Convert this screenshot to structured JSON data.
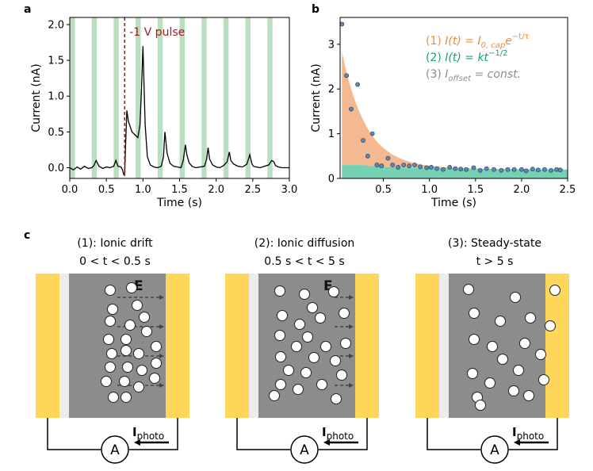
{
  "panel_labels": {
    "a": "a",
    "b": "b",
    "c": "c"
  },
  "chart_data": [
    {
      "panel": "a",
      "type": "line",
      "xlabel": "Time (s)",
      "ylabel": "Current (nA)",
      "xlim": [
        0.0,
        3.0
      ],
      "ylim": [
        -0.15,
        2.1
      ],
      "xticks": [
        0.0,
        0.5,
        1.0,
        1.5,
        2.0,
        2.5,
        3.0
      ],
      "xtick_labels": [
        "0.0",
        "0.5",
        "1.0",
        "1.5",
        "2.0",
        "2.5",
        "3.0"
      ],
      "yticks": [
        0.0,
        0.5,
        1.0,
        1.5,
        2.0
      ],
      "ytick_labels": [
        "0.0",
        "0.5",
        "1.0",
        "1.5",
        "2.0"
      ],
      "light_pulses_start_s": [
        0.0,
        0.3,
        0.6,
        0.9,
        1.2,
        1.5,
        1.8,
        2.1,
        2.4,
        2.7
      ],
      "light_pulse_width_s": 0.07,
      "light_pulse_color": "#b9dfc0",
      "line_color": "#000000",
      "marker_x": 0.75,
      "marker_color": "#a51c1c",
      "annotation": "-1 V pulse",
      "series": [
        {
          "x": [
            0.0,
            0.05,
            0.1,
            0.15,
            0.2,
            0.25,
            0.3,
            0.33,
            0.36,
            0.4,
            0.45,
            0.5,
            0.55,
            0.6,
            0.63,
            0.66,
            0.7,
            0.72,
            0.74,
            0.745,
            0.75,
            0.76,
            0.78,
            0.8,
            0.85,
            0.9,
            0.93,
            0.96,
            0.98,
            1.0,
            1.03,
            1.06,
            1.1,
            1.15,
            1.2,
            1.25,
            1.28,
            1.3,
            1.33,
            1.37,
            1.42,
            1.47,
            1.52,
            1.55,
            1.58,
            1.6,
            1.63,
            1.67,
            1.72,
            1.78,
            1.84,
            1.87,
            1.89,
            1.91,
            1.95,
            2.0,
            2.05,
            2.1,
            2.15,
            2.18,
            2.2,
            2.24,
            2.3,
            2.36,
            2.42,
            2.46,
            2.49,
            2.51,
            2.55,
            2.6,
            2.66,
            2.72,
            2.76,
            2.79,
            2.81,
            2.85,
            2.9,
            2.95,
            3.0
          ],
          "y": [
            0.0,
            -0.03,
            0.01,
            -0.02,
            0.02,
            -0.01,
            0.0,
            0.03,
            0.1,
            0.02,
            -0.01,
            0.01,
            0.0,
            0.02,
            0.1,
            0.02,
            0.01,
            -0.03,
            -0.1,
            -0.1,
            -0.1,
            0.25,
            0.8,
            0.65,
            0.5,
            0.45,
            0.42,
            0.6,
            1.1,
            1.7,
            0.6,
            0.15,
            0.04,
            0.01,
            0.0,
            0.02,
            0.15,
            0.5,
            0.2,
            0.06,
            0.02,
            0.01,
            0.0,
            0.1,
            0.32,
            0.18,
            0.07,
            0.02,
            0.0,
            0.01,
            0.02,
            0.12,
            0.28,
            0.12,
            0.04,
            0.01,
            0.0,
            0.03,
            0.08,
            0.22,
            0.1,
            0.05,
            0.02,
            0.01,
            0.05,
            0.18,
            0.05,
            0.02,
            0.01,
            0.0,
            0.02,
            0.04,
            0.1,
            0.08,
            0.03,
            0.01,
            0.0,
            0.0,
            0.0
          ]
        }
      ]
    },
    {
      "panel": "b",
      "type": "scatter",
      "xlabel": "Time (s)",
      "ylabel": "Current (nA)",
      "xlim": [
        0.03,
        2.5
      ],
      "ylim": [
        0.0,
        3.6
      ],
      "xticks": [
        0.5,
        1.0,
        1.5,
        2.0,
        2.5
      ],
      "xtick_labels": [
        "0.5",
        "1.0",
        "1.5",
        "2.0",
        "2.5"
      ],
      "yticks": [
        0,
        1,
        2,
        3
      ],
      "ytick_labels": [
        "0",
        "1",
        "2",
        "3"
      ],
      "fit_cap": {
        "I0": 3.1,
        "tau": 0.25,
        "color": "#f4b183"
      },
      "fit_diff": {
        "k": 0.13,
        "color": "#5cc9a7"
      },
      "offset": 0.15,
      "points": {
        "color": "#5b88b5",
        "edge_color": "#1f3b5a",
        "x": [
          0.05,
          0.1,
          0.15,
          0.22,
          0.28,
          0.33,
          0.38,
          0.43,
          0.48,
          0.55,
          0.6,
          0.66,
          0.72,
          0.78,
          0.84,
          0.9,
          0.97,
          1.02,
          1.08,
          1.15,
          1.22,
          1.28,
          1.34,
          1.4,
          1.48,
          1.55,
          1.62,
          1.7,
          1.78,
          1.85,
          1.92,
          2.0,
          2.05,
          2.12,
          2.18,
          2.25,
          2.32,
          2.38,
          2.42
        ],
        "y": [
          3.45,
          2.3,
          1.55,
          2.1,
          0.85,
          0.5,
          1.0,
          0.3,
          0.28,
          0.45,
          0.3,
          0.25,
          0.3,
          0.28,
          0.3,
          0.26,
          0.24,
          0.25,
          0.22,
          0.2,
          0.25,
          0.22,
          0.21,
          0.2,
          0.24,
          0.18,
          0.22,
          0.2,
          0.18,
          0.2,
          0.2,
          0.2,
          0.17,
          0.21,
          0.19,
          0.2,
          0.18,
          0.2,
          0.19
        ]
      },
      "legend": [
        {
          "num": "(1)",
          "text": "I(t) = I",
          "sub": "0, cap",
          "tail": "e",
          "sup": "−t/τ",
          "color": "#f08c3c"
        },
        {
          "num": "(2)",
          "text": "I(t) = kt",
          "sup": "−1/2",
          "color": "#14a37f"
        },
        {
          "num": "(3)",
          "text": "I",
          "sub": "offset",
          "tail": " = const.",
          "color": "#8c8c8c"
        }
      ]
    }
  ],
  "diagrams": [
    {
      "title": "(1): Ionic drift",
      "condition": "0 < t < 0.5 s",
      "field_label": "E",
      "photo_label": "photo",
      "current_label": "I",
      "ammeter_label": "A",
      "particles": [
        [
          52,
          13
        ],
        [
          79,
          10
        ],
        [
          55,
          37
        ],
        [
          86,
          32
        ],
        [
          52,
          52
        ],
        [
          77,
          57
        ],
        [
          95,
          47
        ],
        [
          98,
          65
        ],
        [
          50,
          75
        ],
        [
          72,
          75
        ],
        [
          54,
          93
        ],
        [
          72,
          89
        ],
        [
          88,
          93
        ],
        [
          110,
          84
        ],
        [
          52,
          110
        ],
        [
          74,
          110
        ],
        [
          92,
          114
        ],
        [
          110,
          105
        ],
        [
          47,
          128
        ],
        [
          70,
          128
        ],
        [
          88,
          135
        ],
        [
          108,
          124
        ],
        [
          56,
          148
        ],
        [
          72,
          148
        ]
      ],
      "arrows": 4
    },
    {
      "title": "(2): Ionic diffusion",
      "condition": "0.5 s < t < 5 s",
      "field_label": "E",
      "photo_label": "photo",
      "current_label": "I",
      "ammeter_label": "A",
      "particles": [
        [
          27,
          14
        ],
        [
          58,
          18
        ],
        [
          95,
          15
        ],
        [
          68,
          35
        ],
        [
          30,
          45
        ],
        [
          52,
          56
        ],
        [
          78,
          48
        ],
        [
          108,
          42
        ],
        [
          27,
          70
        ],
        [
          62,
          72
        ],
        [
          48,
          84
        ],
        [
          85,
          84
        ],
        [
          110,
          80
        ],
        [
          28,
          97
        ],
        [
          70,
          98
        ],
        [
          97,
          102
        ],
        [
          38,
          114
        ],
        [
          60,
          117
        ],
        [
          105,
          120
        ],
        [
          28,
          132
        ],
        [
          50,
          138
        ],
        [
          80,
          132
        ],
        [
          98,
          150
        ],
        [
          20,
          146
        ]
      ],
      "arrows": 4
    },
    {
      "title": "(3): Steady-state",
      "condition": "t > 5 s",
      "field_label": "",
      "photo_label": "photo",
      "current_label": "I",
      "ammeter_label": "A",
      "particles": [
        [
          25,
          12
        ],
        [
          84,
          22
        ],
        [
          134,
          13
        ],
        [
          32,
          42
        ],
        [
          65,
          52
        ],
        [
          103,
          48
        ],
        [
          128,
          58
        ],
        [
          32,
          75
        ],
        [
          55,
          84
        ],
        [
          96,
          80
        ],
        [
          68,
          100
        ],
        [
          116,
          94
        ],
        [
          30,
          118
        ],
        [
          52,
          130
        ],
        [
          88,
          114
        ],
        [
          120,
          126
        ],
        [
          36,
          148
        ],
        [
          82,
          140
        ],
        [
          101,
          146
        ],
        [
          40,
          158
        ]
      ],
      "arrows": 0
    }
  ]
}
